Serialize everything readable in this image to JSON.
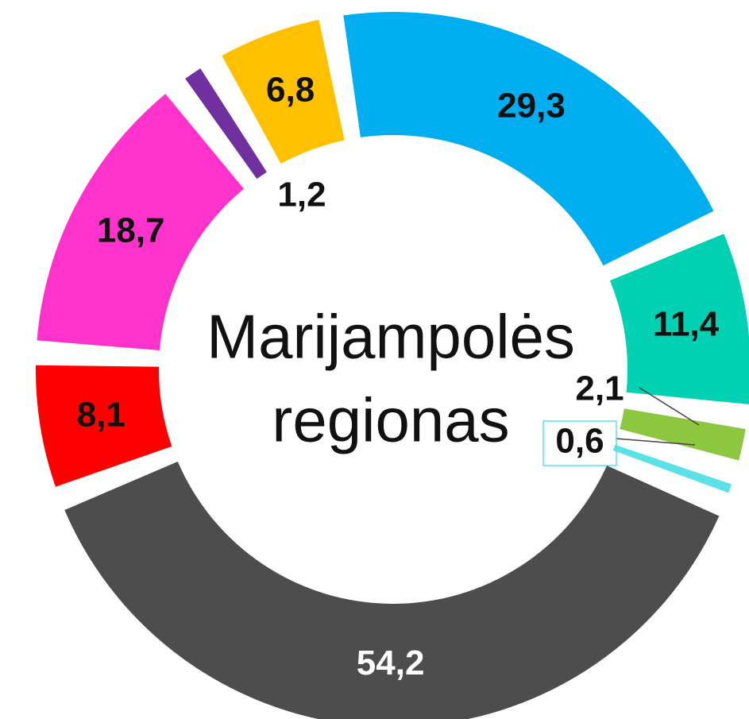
{
  "chart_data": {
    "type": "donut",
    "title": [
      "Marijampolės",
      "regionas"
    ],
    "categories": [
      null,
      null,
      null,
      null,
      null,
      null,
      null,
      null,
      null
    ],
    "values": [
      29.3,
      11.4,
      2.1,
      0.6,
      54.2,
      8.1,
      18.7,
      1.2,
      6.8
    ],
    "value_labels": [
      "29,3",
      "11,4",
      "2,1",
      "0,6",
      "54,2",
      "8,1",
      "18,7",
      "1,2",
      "6,8"
    ],
    "colors": [
      "#00aeef",
      "#00d1b2",
      "#8dc63f",
      "#5ce1e6",
      "#4d4d4d",
      "#ff0000",
      "#ff33cc",
      "#7030a0",
      "#ffc000"
    ]
  }
}
